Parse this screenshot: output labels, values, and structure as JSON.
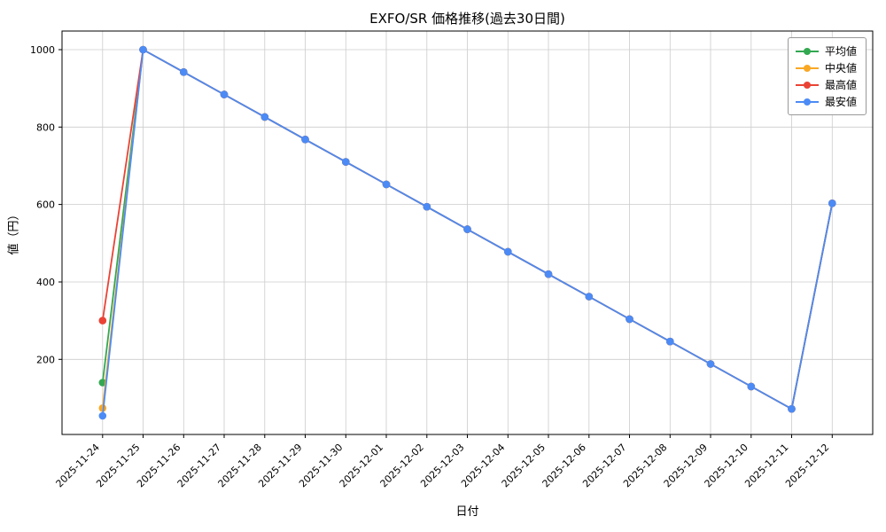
{
  "chart_data": {
    "type": "line",
    "title": "EXFO/SR 価格推移(過去30日間)",
    "xlabel": "日付",
    "ylabel": "値（円）",
    "categories": [
      "2025-11-24",
      "2025-11-25",
      "2025-11-26",
      "2025-11-27",
      "2025-11-28",
      "2025-11-29",
      "2025-11-30",
      "2025-12-01",
      "2025-12-02",
      "2025-12-03",
      "2025-12-04",
      "2025-12-05",
      "2025-12-06",
      "2025-12-07",
      "2025-12-08",
      "2025-12-09",
      "2025-12-10",
      "2025-12-11",
      "2025-12-12"
    ],
    "series": [
      {
        "name": "平均値",
        "color": "#33a852",
        "values": [
          140,
          1000,
          942,
          884,
          826,
          768,
          710,
          652,
          594,
          536,
          478,
          420,
          362,
          304,
          246,
          188,
          130,
          72,
          603
        ]
      },
      {
        "name": "中央値",
        "color": "#f9a825",
        "values": [
          74,
          1000,
          942,
          884,
          826,
          768,
          710,
          652,
          594,
          536,
          478,
          420,
          362,
          304,
          246,
          188,
          130,
          72,
          603
        ]
      },
      {
        "name": "最高値",
        "color": "#ea4335",
        "values": [
          300,
          1000,
          942,
          884,
          826,
          768,
          710,
          652,
          594,
          536,
          478,
          420,
          362,
          304,
          246,
          188,
          130,
          72,
          603
        ]
      },
      {
        "name": "最安値",
        "color": "#4c8bf5",
        "values": [
          54,
          1000,
          942,
          884,
          826,
          768,
          710,
          652,
          594,
          536,
          478,
          420,
          362,
          304,
          246,
          188,
          130,
          72,
          603
        ]
      }
    ],
    "ylim": [
      6,
      1048
    ],
    "yticks": [
      200,
      400,
      600,
      800,
      1000
    ],
    "grid": true,
    "legend_position": "upper right",
    "xtick_rotation": 45
  }
}
